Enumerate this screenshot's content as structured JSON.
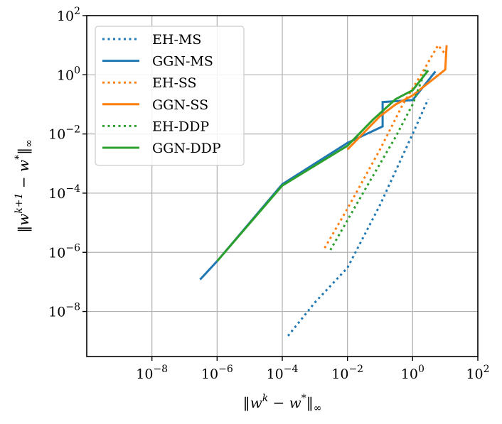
{
  "chart_data": {
    "type": "line",
    "title": "",
    "x_scale": "log",
    "y_scale": "log",
    "xlim": [
      1e-10,
      100
    ],
    "ylim": [
      3e-10,
      100
    ],
    "grid": true,
    "legend_position": "upper-left",
    "x_ticks": [
      {
        "value": 1e-08,
        "base": "10",
        "exp": "−8"
      },
      {
        "value": 1e-06,
        "base": "10",
        "exp": "−6"
      },
      {
        "value": 0.0001,
        "base": "10",
        "exp": "−4"
      },
      {
        "value": 0.01,
        "base": "10",
        "exp": "−2"
      },
      {
        "value": 1,
        "base": "10",
        "exp": "0"
      },
      {
        "value": 100,
        "base": "10",
        "exp": "2"
      }
    ],
    "y_ticks": [
      {
        "value": 1e-08,
        "base": "10",
        "exp": "−8"
      },
      {
        "value": 1e-06,
        "base": "10",
        "exp": "−6"
      },
      {
        "value": 0.0001,
        "base": "10",
        "exp": "−4"
      },
      {
        "value": 0.01,
        "base": "10",
        "exp": "−2"
      },
      {
        "value": 1,
        "base": "10",
        "exp": "0"
      },
      {
        "value": 100,
        "base": "10",
        "exp": "2"
      }
    ],
    "xlabel": {
      "norm_open": "‖",
      "w1": "w",
      "sup1": "k",
      "mid": " − ",
      "w2": "w",
      "sup2": "*",
      "norm_close": "‖",
      "sub": "∞"
    },
    "ylabel": {
      "norm_open": "‖",
      "w1": "w",
      "sup1": "k+1",
      "mid": " − ",
      "w2": "w",
      "sup2": "*",
      "norm_close": "‖",
      "sub": "∞"
    },
    "series": [
      {
        "name": "EH-MS",
        "color": "#1f77b4",
        "style": "dotted",
        "points": [
          [
            0.00015,
            1.5e-09
          ],
          [
            0.001,
            2e-08
          ],
          [
            0.01,
            3e-07
          ],
          [
            0.1,
            4e-05
          ],
          [
            1,
            0.01
          ],
          [
            3,
            0.15
          ]
        ]
      },
      {
        "name": "GGN-MS",
        "color": "#1f77b4",
        "style": "solid",
        "points": [
          [
            3e-07,
            1.2e-07
          ],
          [
            1e-06,
            5e-07
          ],
          [
            0.0001,
            0.0002
          ],
          [
            0.01,
            0.005
          ],
          [
            0.12,
            0.018
          ],
          [
            0.12,
            0.12
          ],
          [
            1.0,
            0.14
          ],
          [
            5.0,
            1.3
          ]
        ]
      },
      {
        "name": "EH-SS",
        "color": "#ff7f0e",
        "style": "dotted",
        "points": [
          [
            0.002,
            1.4e-06
          ],
          [
            0.01,
            3e-05
          ],
          [
            0.1,
            0.003
          ],
          [
            0.5,
            0.1
          ],
          [
            2,
            1.2
          ],
          [
            6,
            10
          ],
          [
            10,
            5
          ]
        ]
      },
      {
        "name": "GGN-SS",
        "color": "#ff7f0e",
        "style": "solid",
        "points": [
          [
            0.01,
            0.003
          ],
          [
            0.1,
            0.04
          ],
          [
            0.3,
            0.1
          ],
          [
            1,
            0.2
          ],
          [
            10,
            1.5
          ],
          [
            11,
            10
          ]
        ]
      },
      {
        "name": "EH-DDP",
        "color": "#2ca02c",
        "style": "dotted",
        "points": [
          [
            0.003,
            1.2e-06
          ],
          [
            0.03,
            0.0001
          ],
          [
            0.3,
            0.008
          ],
          [
            1.0,
            0.1
          ],
          [
            2.5,
            1.5
          ]
        ]
      },
      {
        "name": "GGN-DDP",
        "color": "#2ca02c",
        "style": "solid",
        "points": [
          [
            1e-06,
            5e-07
          ],
          [
            0.0001,
            0.00018
          ],
          [
            0.01,
            0.004
          ],
          [
            0.06,
            0.03
          ],
          [
            0.3,
            0.15
          ],
          [
            1,
            0.3
          ],
          [
            3,
            1.4
          ]
        ]
      }
    ]
  }
}
